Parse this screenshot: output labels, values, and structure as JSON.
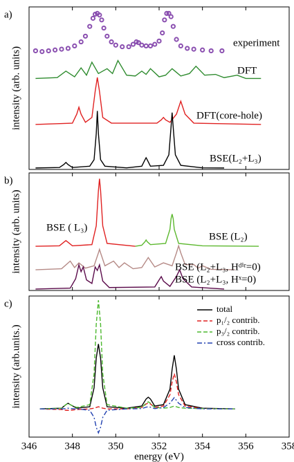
{
  "chart_data": [
    {
      "type": "line",
      "panel_label": "a)",
      "ylabel": "intensity (arb. units)",
      "xlim": [
        346,
        358
      ],
      "ylim": [
        0,
        10
      ],
      "series": [
        {
          "name": "experiment",
          "color": "#8a4fb0",
          "style": "markers",
          "x": [
            346.3,
            346.6,
            346.9,
            347.2,
            347.5,
            347.8,
            348.1,
            348.4,
            348.6,
            348.8,
            348.95,
            349.05,
            349.15,
            349.25,
            349.35,
            349.45,
            349.6,
            349.8,
            350.0,
            350.3,
            350.6,
            350.8,
            350.95,
            351.05,
            351.2,
            351.4,
            351.6,
            351.8,
            352.0,
            352.15,
            352.25,
            352.35,
            352.45,
            352.55,
            352.65,
            352.8,
            353.0,
            353.3,
            353.6,
            354.0,
            354.4,
            354.9
          ],
          "values": [
            7.3,
            7.25,
            7.3,
            7.35,
            7.4,
            7.45,
            7.6,
            7.85,
            8.2,
            8.8,
            9.3,
            9.55,
            9.6,
            9.5,
            9.2,
            8.7,
            8.2,
            7.85,
            7.65,
            7.55,
            7.55,
            7.7,
            7.85,
            7.8,
            7.65,
            7.6,
            7.6,
            7.7,
            7.9,
            8.4,
            9.2,
            9.6,
            9.6,
            9.4,
            8.8,
            8.0,
            7.6,
            7.45,
            7.4,
            7.35,
            7.3,
            7.3
          ]
        },
        {
          "name": "DFT",
          "color": "#2e8b2e",
          "style": "solid",
          "x": [
            346.3,
            347.3,
            347.7,
            348.1,
            348.4,
            348.65,
            348.9,
            349.2,
            349.6,
            349.85,
            350.1,
            350.5,
            350.9,
            351.2,
            351.4,
            351.6,
            352.0,
            352.3,
            352.6,
            353.0,
            353.4,
            353.7,
            354.1,
            354.6,
            355.0,
            355.6,
            356.0,
            356.7
          ],
          "values": [
            5.6,
            5.65,
            6.05,
            5.7,
            6.25,
            5.8,
            6.6,
            5.9,
            6.2,
            5.9,
            6.7,
            5.8,
            5.75,
            6.05,
            5.85,
            6.2,
            5.7,
            5.8,
            6.2,
            5.75,
            5.9,
            6.35,
            5.8,
            5.85,
            5.65,
            5.8,
            5.6,
            5.6
          ]
        },
        {
          "name": "DFT(core-hole)",
          "color": "#e02020",
          "style": "solid",
          "x": [
            346.3,
            348.0,
            348.2,
            348.3,
            348.4,
            348.6,
            348.9,
            349.05,
            349.15,
            349.25,
            349.4,
            349.8,
            351.9,
            352.1,
            352.2,
            352.3,
            352.5,
            352.8,
            352.95,
            353.0,
            353.05,
            353.2,
            353.6,
            356.7
          ],
          "values": [
            2.77,
            2.85,
            3.4,
            3.83,
            3.4,
            2.9,
            3.2,
            4.8,
            5.66,
            4.8,
            3.2,
            2.85,
            2.85,
            3.05,
            3.2,
            3.05,
            2.9,
            3.4,
            4.0,
            4.2,
            4.0,
            3.4,
            2.85,
            2.77
          ]
        },
        {
          "name": "BSE(L₂+L₃)",
          "color": "#000000",
          "style": "solid",
          "x": [
            346.3,
            347.4,
            347.6,
            347.7,
            347.8,
            348.0,
            348.8,
            349.0,
            349.1,
            349.15,
            349.2,
            349.3,
            349.5,
            350.5,
            351.2,
            351.35,
            351.4,
            351.45,
            351.6,
            352.2,
            352.45,
            352.55,
            352.6,
            352.65,
            352.75,
            353.0,
            354.0,
            355.0
          ],
          "values": [
            0.09,
            0.12,
            0.3,
            0.43,
            0.3,
            0.12,
            0.2,
            0.6,
            2.2,
            3.6,
            2.2,
            0.6,
            0.2,
            0.1,
            0.2,
            0.6,
            0.72,
            0.6,
            0.2,
            0.25,
            0.9,
            2.6,
            3.5,
            2.6,
            0.9,
            0.25,
            0.1,
            0.09
          ]
        }
      ]
    },
    {
      "type": "line",
      "panel_label": "b)",
      "ylabel": "intensity (arb. units)",
      "xlim": [
        346,
        358
      ],
      "ylim": [
        0,
        10
      ],
      "series": [
        {
          "name": "BSE ( L₃)",
          "color": "#e02020",
          "style": "solid",
          "x": [
            346.3,
            347.4,
            347.6,
            347.7,
            347.8,
            348.0,
            348.9,
            349.1,
            349.2,
            349.25,
            349.3,
            349.4,
            349.6,
            350.9
          ],
          "values": [
            3.76,
            3.8,
            4.1,
            4.24,
            4.1,
            3.8,
            3.9,
            5.5,
            8.5,
            9.5,
            8.5,
            5.5,
            4.0,
            3.76
          ]
        },
        {
          "name": "BSE (L₂)",
          "color": "#5cb82e",
          "style": "solid",
          "x": [
            350.9,
            351.2,
            351.35,
            351.4,
            351.45,
            351.6,
            352.3,
            352.5,
            352.55,
            352.6,
            352.65,
            352.7,
            352.9,
            354.0,
            356.6
          ],
          "values": [
            3.76,
            3.85,
            4.15,
            4.3,
            4.15,
            3.9,
            4.0,
            5.2,
            6.1,
            6.5,
            6.1,
            5.2,
            4.0,
            3.8,
            3.76
          ]
        },
        {
          "name": "BSE (L₂+L₃, Hᵈⁱʳ=0)",
          "color": "#b58a86",
          "style": "solid",
          "x": [
            346.3,
            347.5,
            347.9,
            348.1,
            348.3,
            348.6,
            349.0,
            349.2,
            349.25,
            349.3,
            349.5,
            349.9,
            350.15,
            350.4,
            350.8,
            351.2,
            351.5,
            351.8,
            352.2,
            352.6,
            352.8,
            352.9,
            353.0,
            353.2,
            353.6,
            353.8,
            354.0,
            354.4,
            355.5
          ],
          "values": [
            1.76,
            1.85,
            2.5,
            1.95,
            2.35,
            1.9,
            2.1,
            3.2,
            3.5,
            3.2,
            2.1,
            2.5,
            1.95,
            2.35,
            1.85,
            1.95,
            2.8,
            2.0,
            2.35,
            2.1,
            3.2,
            3.8,
            3.2,
            2.2,
            2.2,
            1.9,
            2.1,
            1.8,
            1.76
          ]
        },
        {
          "name": "BSE (L₂+L₃, Hˣ=0)",
          "color": "#5a0a4a",
          "style": "solid",
          "x": [
            346.3,
            347.9,
            348.15,
            348.3,
            348.4,
            348.5,
            348.65,
            348.9,
            349.05,
            349.15,
            349.25,
            349.4,
            349.7,
            351.8,
            352.0,
            352.1,
            352.2,
            352.5,
            352.8,
            352.95,
            353.1,
            353.5,
            355.0
          ],
          "values": [
            0.12,
            0.2,
            1.0,
            2.18,
            1.6,
            2.0,
            0.9,
            0.6,
            2.0,
            1.7,
            2.18,
            0.8,
            0.25,
            0.3,
            0.9,
            1.18,
            0.8,
            0.35,
            1.2,
            1.76,
            1.0,
            0.3,
            0.12
          ]
        }
      ]
    },
    {
      "type": "line",
      "panel_label": "c)",
      "ylabel": "intensity (arb.units.)",
      "xlabel": "energy (eV)",
      "xlim": [
        346,
        358
      ],
      "ylim": [
        -2,
        8
      ],
      "xticks": [
        346,
        348,
        350,
        352,
        354,
        356,
        358
      ],
      "legend": "upper right",
      "x": [
        346.5,
        347.5,
        347.7,
        347.8,
        347.9,
        348.2,
        348.8,
        349.0,
        349.1,
        349.2,
        349.3,
        349.4,
        349.6,
        350.5,
        351.2,
        351.4,
        351.5,
        351.6,
        351.8,
        352.2,
        352.5,
        352.6,
        352.7,
        352.8,
        352.9,
        353.2,
        354.0,
        355.5
      ],
      "series": [
        {
          "name": "total",
          "color": "#000000",
          "style": "solid",
          "values": [
            0,
            0.05,
            0.3,
            0.4,
            0.3,
            0.05,
            0.15,
            1.5,
            3.6,
            4.6,
            3.6,
            1.5,
            0.15,
            0.05,
            0.2,
            0.7,
            0.83,
            0.7,
            0.2,
            0.3,
            1.4,
            2.8,
            3.8,
            2.8,
            1.4,
            0.3,
            0.05,
            0
          ]
        },
        {
          "name": "p₁/₂ contrib.",
          "color": "#e02020",
          "style": "dashed",
          "values": [
            0,
            -0.05,
            -0.1,
            -0.1,
            -0.1,
            -0.05,
            0,
            0.05,
            0.1,
            0.15,
            0.1,
            0.05,
            0,
            0,
            0.1,
            0.35,
            0.4,
            0.35,
            0.1,
            0.2,
            1.0,
            1.9,
            2.5,
            1.9,
            1.0,
            0.2,
            0.02,
            0
          ]
        },
        {
          "name": "p₃/₂ contrib.",
          "color": "#4cb82e",
          "style": "dashed",
          "values": [
            0,
            0.05,
            0.3,
            0.4,
            0.3,
            0.1,
            0.3,
            2.5,
            6.0,
            7.7,
            6.0,
            2.5,
            0.3,
            0.05,
            0.1,
            0.4,
            0.5,
            0.4,
            0.1,
            0.05,
            0.1,
            0.15,
            0.2,
            0.15,
            0.1,
            0.05,
            0.02,
            0
          ]
        },
        {
          "name": "cross contrib.",
          "color": "#2040b0",
          "style": "dash-dot",
          "values": [
            0,
            0,
            0.02,
            0.05,
            0.02,
            0,
            -0.1,
            -0.6,
            -1.3,
            -1.7,
            -1.3,
            -0.6,
            -0.1,
            0,
            0.02,
            0.12,
            0.15,
            0.12,
            0.02,
            0.1,
            0.4,
            0.6,
            0.8,
            0.6,
            0.4,
            0.1,
            0,
            0
          ]
        }
      ]
    }
  ]
}
